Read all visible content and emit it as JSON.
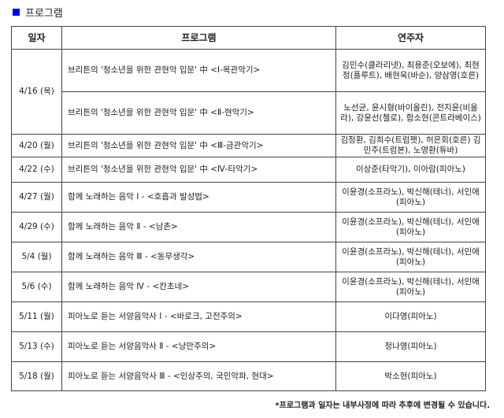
{
  "heading": {
    "icon_color": "#0000ff",
    "title": "프로그램"
  },
  "table": {
    "headers": {
      "date": "일자",
      "program": "프로그램",
      "performers": "연주자"
    },
    "rows": [
      {
        "date": "4/16 (목)",
        "program": "브리튼의  '청소년을 위한 관현악 입문'  中 <Ⅰ-목관악기>",
        "performers": "김민수(클라리넷), 최용준(오보에), 최현정(플루트), 배현욱(바순), 양삼영(호른)"
      },
      {
        "date": "",
        "program": "브리튼의  '청소년을 위한 관현악 입문'  中 <Ⅱ-현악기>",
        "performers": "노선균, 윤시형(바이올린), 전지윤(비올라), 강윤선(첼로), 함소현(콘트라베이스)"
      },
      {
        "date": "4/20 (월)",
        "program": "브리튼의  '청소년을 위한 관현악 입문'  中 <Ⅲ-금관악기>",
        "performers": "김정환, 김희수(트럼펫), 허은회(호른) 김민주(트럼본), 노영환(튜바)"
      },
      {
        "date": "4/22 (수)",
        "program": "브리튼의  '청소년을 위한 관현악 입문'  中 <Ⅳ-타악기>",
        "performers": "이상준(타악기), 이아람(피아노)"
      },
      {
        "date": "4/27 (월)",
        "program": "함께 노래하는 음악  Ⅰ - <호흡과 발성법>",
        "performers": "이윤경(소프라노), 박신해(테너), 서인애(피아노)"
      },
      {
        "date": "4/29 (수)",
        "program": "함께 노래하는 음악  Ⅱ  - <남촌>",
        "performers": "이윤경(소프라노), 박신해(테너), 서인애(피아노)"
      },
      {
        "date": "5/4 (월)",
        "program": "함께 노래하는 음악  Ⅲ  - <동무생각>",
        "performers": "이윤경(소프라노), 박신해(테너), 서인애(피아노)"
      },
      {
        "date": "5/6 (수)",
        "program": "함께 노래하는 음악  Ⅳ  - <칸초네>",
        "performers": "이윤경(소프라노), 박신해(테너), 서인애(피아노)"
      },
      {
        "date": "5/11 (월)",
        "program": "피아노로 듣는 서양음악사  Ⅰ  - <바로크, 고전주의>",
        "performers": "이다영(피아노)"
      },
      {
        "date": "5/13 (수)",
        "program": "피아노로 듣는 서양음악사  Ⅱ  - <낭만주의>",
        "performers": "정나영(피아노)"
      },
      {
        "date": "5/18 (월)",
        "program": "피아노로 듣는 서양음악사  Ⅲ  - <인상주의, 국민악파, 현대>",
        "performers": "박소현(피아노)"
      }
    ]
  },
  "footer": "*프로그램과 일자는 내부사정에 따라 추후에 변경될 수 있습니다."
}
